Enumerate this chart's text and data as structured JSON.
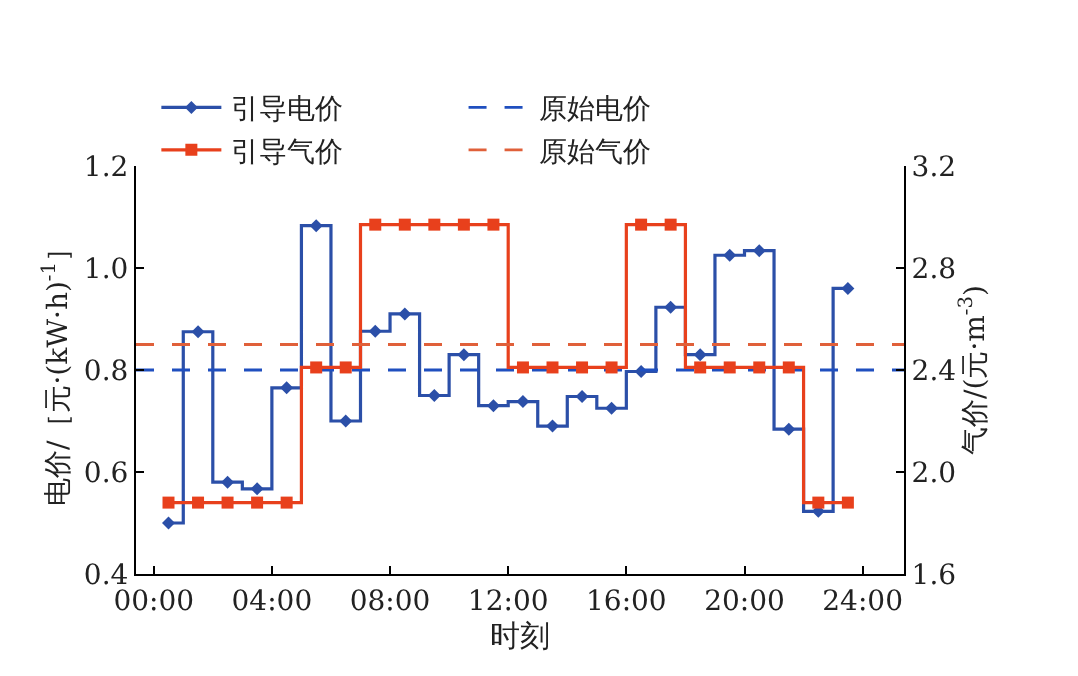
{
  "chart_data": {
    "type": "step",
    "xlabel": "时刻",
    "ylabel": "电价/［元·(kW·h)$^{-1}$］",
    "y2label": "气价/(元·m$^{-3}$)",
    "x": [
      0.5,
      1.5,
      2.5,
      3.5,
      4.5,
      5.5,
      6.5,
      7.5,
      8.5,
      9.5,
      10.5,
      11.5,
      12.5,
      13.5,
      14.5,
      15.5,
      16.5,
      17.5,
      18.5,
      19.5,
      20.5,
      21.5,
      22.5,
      23.5
    ],
    "series": [
      {
        "name": "引导电价",
        "color": "#2b4fa8",
        "marker": "diamond",
        "values": [
          0.5,
          0.875,
          0.58,
          0.567,
          0.765,
          1.083,
          0.7,
          0.876,
          0.91,
          0.75,
          0.83,
          0.73,
          0.738,
          0.69,
          0.748,
          0.725,
          0.797,
          0.923,
          0.83,
          1.025,
          1.034,
          0.684,
          0.523,
          0.96
        ]
      },
      {
        "name": "引导气价",
        "color": "#e8401c",
        "marker": "square",
        "axis": "y2",
        "values": [
          1.88,
          1.88,
          1.88,
          1.88,
          1.88,
          2.41,
          2.41,
          2.97,
          2.97,
          2.97,
          2.97,
          2.97,
          2.41,
          2.41,
          2.41,
          2.41,
          2.97,
          2.97,
          2.41,
          2.41,
          2.41,
          2.41,
          1.88,
          1.88
        ]
      }
    ],
    "ref_lines": [
      {
        "axis": "y",
        "value": 0.8,
        "label": "原始电价",
        "color": "#1f4fbf",
        "line_style": "dashed"
      },
      {
        "axis": "y2",
        "value": 2.5,
        "label": "原始气价",
        "color": "#e0603a",
        "line_style": "dashed"
      }
    ],
    "xlim": [
      -0.6,
      25.4
    ],
    "xticks": [
      {
        "value": 0,
        "label": "00:00"
      },
      {
        "value": 4,
        "label": "04:00"
      },
      {
        "value": 8,
        "label": "08:00"
      },
      {
        "value": 12,
        "label": "12:00"
      },
      {
        "value": 16,
        "label": "16:00"
      },
      {
        "value": 20,
        "label": "20:00"
      },
      {
        "value": 24,
        "label": "24:00"
      }
    ],
    "ylim": [
      0.4,
      1.2
    ],
    "yticks": [
      0.4,
      0.6,
      0.8,
      {
        "value": 1,
        "label": "1.0"
      },
      1.2
    ],
    "y2lim": [
      1.6,
      3.2
    ],
    "y2ticks": [
      1.6,
      {
        "value": 2,
        "label": "2.0"
      },
      2.4,
      2.8,
      3.2
    ],
    "legend": "top"
  }
}
